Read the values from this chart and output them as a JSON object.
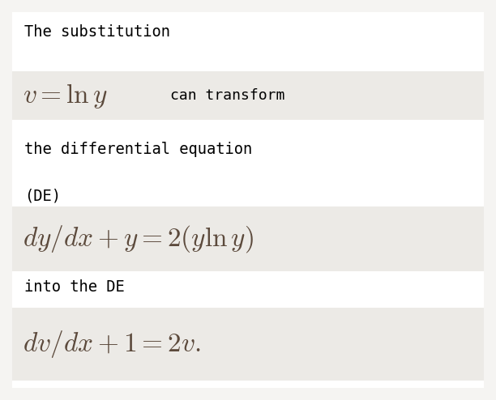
{
  "bg_color": "#f5f4f2",
  "inner_bg": "#ffffff",
  "text_color": "#000000",
  "math_color": "#5c4a3c",
  "highlight_bg": "#eceae6",
  "line1_text": "The substitution",
  "line1_font": "monospace",
  "line1_size": 13.5,
  "line2_math_size": 24,
  "line2_suffix_size": 13,
  "line3_text": "the differential equation",
  "line3_font": "monospace",
  "line3_size": 13.5,
  "line4_text": "(DE)",
  "line4_font": "monospace",
  "line4_size": 13.5,
  "line5_size": 24,
  "line6_text": "into the DE",
  "line6_font": "monospace",
  "line6_size": 13.5,
  "line7_size": 24
}
